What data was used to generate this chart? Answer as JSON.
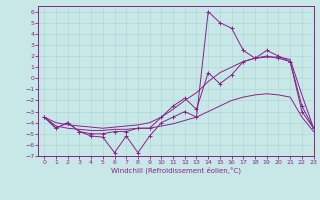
{
  "xlabel": "Windchill (Refroidissement éolien,°C)",
  "background_color": "#c8e8e8",
  "grid_color": "#b0d8d8",
  "line_color": "#882288",
  "xlim": [
    -0.5,
    23
  ],
  "ylim": [
    -7,
    6.5
  ],
  "yticks": [
    -7,
    -6,
    -5,
    -4,
    -3,
    -2,
    -1,
    0,
    1,
    2,
    3,
    4,
    5,
    6
  ],
  "xticks": [
    0,
    1,
    2,
    3,
    4,
    5,
    6,
    7,
    8,
    9,
    10,
    11,
    12,
    13,
    14,
    15,
    16,
    17,
    18,
    19,
    20,
    21,
    22,
    23
  ],
  "series1_x": [
    0,
    1,
    2,
    3,
    4,
    5,
    6,
    7,
    8,
    9,
    10,
    11,
    12,
    13,
    14,
    15,
    16,
    17,
    18,
    19,
    20,
    21,
    22,
    23
  ],
  "series1_y": [
    -3.5,
    -4.5,
    -4.0,
    -4.8,
    -5.2,
    -5.3,
    -6.7,
    -5.2,
    -6.7,
    -5.2,
    -4.0,
    -3.5,
    -3.0,
    -3.5,
    6.0,
    5.0,
    4.5,
    2.5,
    1.8,
    2.5,
    2.0,
    1.5,
    -2.5,
    -4.5
  ],
  "series2_x": [
    0,
    1,
    2,
    3,
    4,
    5,
    6,
    7,
    8,
    9,
    10,
    11,
    12,
    13,
    14,
    15,
    16,
    17,
    18,
    19,
    20,
    21,
    22,
    23
  ],
  "series2_y": [
    -3.5,
    -4.5,
    -4.0,
    -4.8,
    -5.0,
    -5.0,
    -4.8,
    -4.8,
    -4.5,
    -4.5,
    -3.5,
    -2.5,
    -1.8,
    -2.8,
    0.5,
    -0.5,
    0.3,
    1.5,
    1.8,
    2.0,
    1.8,
    1.5,
    -3.0,
    -4.5
  ],
  "series3_x": [
    0,
    1,
    2,
    3,
    4,
    5,
    6,
    7,
    8,
    9,
    10,
    11,
    12,
    13,
    14,
    15,
    16,
    17,
    18,
    19,
    20,
    21,
    22,
    23
  ],
  "series3_y": [
    -3.5,
    -4.0,
    -4.2,
    -4.3,
    -4.4,
    -4.5,
    -4.4,
    -4.3,
    -4.2,
    -4.0,
    -3.5,
    -2.8,
    -2.0,
    -1.3,
    -0.3,
    0.5,
    1.0,
    1.5,
    1.8,
    1.9,
    1.9,
    1.7,
    -1.5,
    -4.5
  ],
  "series4_x": [
    0,
    1,
    2,
    3,
    4,
    5,
    6,
    7,
    8,
    9,
    10,
    11,
    12,
    13,
    14,
    15,
    16,
    17,
    18,
    19,
    20,
    21,
    22,
    23
  ],
  "series4_y": [
    -3.5,
    -4.3,
    -4.5,
    -4.6,
    -4.7,
    -4.7,
    -4.6,
    -4.6,
    -4.5,
    -4.5,
    -4.3,
    -4.1,
    -3.8,
    -3.5,
    -3.0,
    -2.5,
    -2.0,
    -1.7,
    -1.5,
    -1.4,
    -1.5,
    -1.7,
    -3.5,
    -4.8
  ]
}
